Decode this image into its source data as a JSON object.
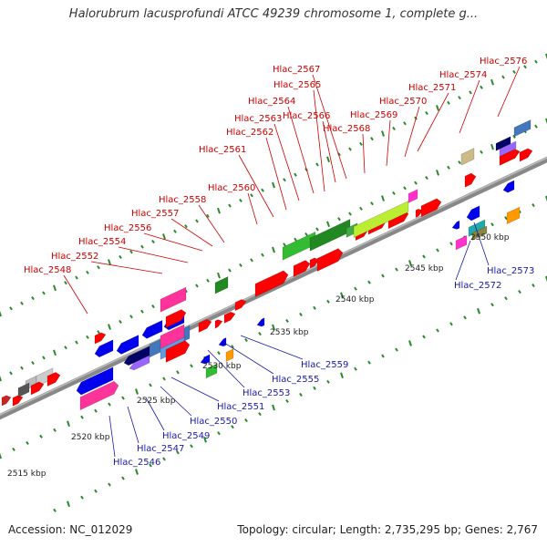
{
  "title": "Halorubrum lacusprofundi ATCC 49239 chromosome 1, complete g...",
  "footer": {
    "accession": "Accession: NC_012029",
    "summary": "Topology: circular; Length: 2,735,295 bp; Genes: 2,767"
  },
  "scale_labels": [
    "2515 kbp",
    "2520 kbp",
    "2525 kbp",
    "2530 kbp",
    "2535 kbp",
    "2540 kbp",
    "2545 kbp",
    "2550 kbp"
  ],
  "top_labels": [
    "Hlac_2548",
    "Hlac_2552",
    "Hlac_2554",
    "Hlac_2556",
    "Hlac_2557",
    "Hlac_2558",
    "Hlac_2560",
    "Hlac_2561",
    "Hlac_2562",
    "Hlac_2563",
    "Hlac_2564",
    "Hlac_2565",
    "Hlac_2566",
    "Hlac_2567",
    "Hlac_2568",
    "Hlac_2569",
    "Hlac_2570",
    "Hlac_2571",
    "Hlac_2574",
    "Hlac_2576"
  ],
  "bottom_labels": [
    "Hlac_2546",
    "Hlac_2547",
    "Hlac_2549",
    "Hlac_2550",
    "Hlac_2551",
    "Hlac_2553",
    "Hlac_2555",
    "Hlac_2559",
    "Hlac_2572",
    "Hlac_2573"
  ],
  "colors": {
    "forward_gene": "#ff0000",
    "reverse_gene": "#0000ee",
    "backbone": "#888888",
    "tick": "#2a8a2a",
    "top_label": "#cc0000",
    "bottom_label": "#1a1aa6"
  }
}
